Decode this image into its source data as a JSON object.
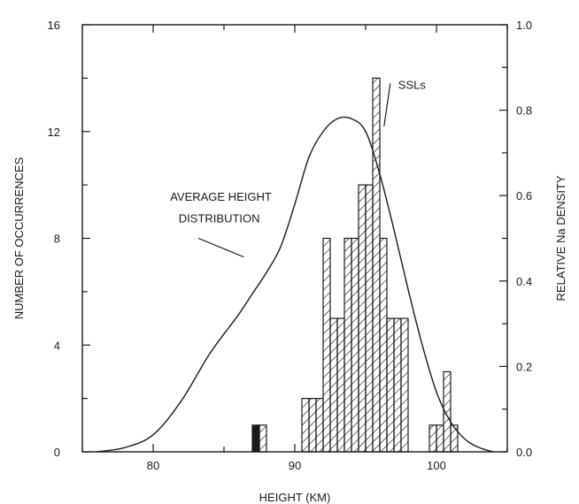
{
  "chart_data": {
    "type": "bar",
    "xlabel": "HEIGHT (KM)",
    "ylabel": "NUMBER OF OCCURRENCES",
    "y2label": "RELATIVE Na DENSITY",
    "xlim": [
      75,
      105
    ],
    "ylim": [
      0,
      16
    ],
    "y2lim": [
      0,
      1.0
    ],
    "x_ticks": [
      80,
      90,
      100
    ],
    "x_tick_labels": [
      "80",
      "90",
      "100"
    ],
    "y_ticks": [
      0,
      4,
      8,
      12,
      16
    ],
    "y_tick_labels": [
      "0",
      "4",
      "8",
      "12",
      "16"
    ],
    "y2_ticks": [
      0,
      0.2,
      0.4,
      0.6,
      0.8,
      1.0
    ],
    "y2_tick_labels": [
      "0.0",
      "0.2",
      "0.4",
      "0.6",
      "0.8",
      "1.0"
    ],
    "bar_width_km": 0.5,
    "series": [
      {
        "name": "SSLs",
        "type": "histogram",
        "bins": [
          {
            "x0": 87.0,
            "count": 1,
            "fill": "solid"
          },
          {
            "x0": 87.5,
            "count": 1,
            "fill": "hatch"
          },
          {
            "x0": 90.5,
            "count": 2,
            "fill": "hatch"
          },
          {
            "x0": 91.0,
            "count": 2,
            "fill": "hatch"
          },
          {
            "x0": 91.5,
            "count": 2,
            "fill": "hatch"
          },
          {
            "x0": 92.0,
            "count": 8,
            "fill": "hatch"
          },
          {
            "x0": 92.5,
            "count": 5,
            "fill": "hatch"
          },
          {
            "x0": 93.0,
            "count": 5,
            "fill": "hatch"
          },
          {
            "x0": 93.5,
            "count": 8,
            "fill": "hatch"
          },
          {
            "x0": 94.0,
            "count": 8,
            "fill": "hatch"
          },
          {
            "x0": 94.5,
            "count": 10,
            "fill": "hatch"
          },
          {
            "x0": 95.0,
            "count": 10,
            "fill": "hatch"
          },
          {
            "x0": 95.5,
            "count": 14,
            "fill": "hatch"
          },
          {
            "x0": 96.0,
            "count": 8,
            "fill": "hatch"
          },
          {
            "x0": 96.5,
            "count": 5,
            "fill": "hatch"
          },
          {
            "x0": 97.0,
            "count": 5,
            "fill": "hatch"
          },
          {
            "x0": 97.5,
            "count": 5,
            "fill": "hatch"
          },
          {
            "x0": 99.5,
            "count": 1,
            "fill": "hatch"
          },
          {
            "x0": 100.0,
            "count": 1,
            "fill": "hatch"
          },
          {
            "x0": 100.5,
            "count": 3,
            "fill": "hatch"
          },
          {
            "x0": 101.0,
            "count": 1,
            "fill": "hatch"
          }
        ]
      },
      {
        "name": "AVERAGE HEIGHT DISTRIBUTION",
        "type": "line",
        "axis": "right",
        "x": [
          76,
          78,
          80,
          82,
          84,
          86,
          87,
          88,
          89,
          90,
          91,
          92,
          93,
          94,
          95,
          96,
          97,
          98,
          99,
          100,
          101,
          102,
          103,
          104
        ],
        "y": [
          0.0,
          0.01,
          0.04,
          0.12,
          0.23,
          0.32,
          0.37,
          0.42,
          0.48,
          0.58,
          0.69,
          0.75,
          0.78,
          0.78,
          0.75,
          0.65,
          0.52,
          0.38,
          0.25,
          0.14,
          0.07,
          0.03,
          0.01,
          0.0
        ]
      }
    ],
    "annotations": [
      {
        "text": "SSLs",
        "x": 97.3,
        "y": 13.6
      },
      {
        "text": "AVERAGE HEIGHT",
        "x": 81.2,
        "y": 9.4
      },
      {
        "text": "DISTRIBUTION",
        "x": 81.8,
        "y": 8.6
      }
    ]
  }
}
